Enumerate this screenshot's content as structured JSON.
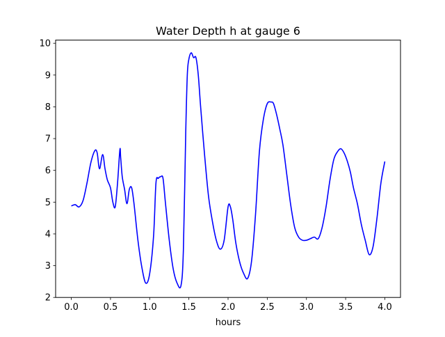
{
  "chart_data": {
    "type": "line",
    "title": "Water Depth h at gauge 6",
    "xlabel": "hours",
    "ylabel": "",
    "xlim": [
      -0.2,
      4.2
    ],
    "ylim": [
      2.0,
      10.1
    ],
    "xticks": [
      0.0,
      0.5,
      1.0,
      1.5,
      2.0,
      2.5,
      3.0,
      3.5,
      4.0
    ],
    "xtick_labels": [
      "0.0",
      "0.5",
      "1.0",
      "1.5",
      "2.0",
      "2.5",
      "3.0",
      "3.5",
      "4.0"
    ],
    "yticks": [
      2,
      3,
      4,
      5,
      6,
      7,
      8,
      9,
      10
    ],
    "ytick_labels": [
      "2",
      "3",
      "4",
      "5",
      "6",
      "7",
      "8",
      "9",
      "10"
    ],
    "grid": false,
    "legend": "none",
    "series": [
      {
        "color": "#0000ff",
        "x": [
          0.0,
          0.05,
          0.1,
          0.15,
          0.2,
          0.25,
          0.3,
          0.33,
          0.36,
          0.4,
          0.43,
          0.46,
          0.5,
          0.53,
          0.56,
          0.59,
          0.62,
          0.63,
          0.65,
          0.68,
          0.71,
          0.74,
          0.77,
          0.8,
          0.85,
          0.9,
          0.95,
          1.0,
          1.05,
          1.08,
          1.11,
          1.14,
          1.17,
          1.2,
          1.25,
          1.3,
          1.35,
          1.4,
          1.43,
          1.46,
          1.48,
          1.5,
          1.53,
          1.56,
          1.59,
          1.62,
          1.65,
          1.7,
          1.75,
          1.8,
          1.85,
          1.9,
          1.95,
          2.0,
          2.03,
          2.06,
          2.1,
          2.15,
          2.2,
          2.25,
          2.3,
          2.35,
          2.4,
          2.45,
          2.5,
          2.55,
          2.58,
          2.62,
          2.66,
          2.7,
          2.75,
          2.8,
          2.85,
          2.9,
          2.95,
          3.0,
          3.05,
          3.1,
          3.15,
          3.2,
          3.25,
          3.3,
          3.35,
          3.4,
          3.44,
          3.48,
          3.52,
          3.56,
          3.6,
          3.65,
          3.7,
          3.75,
          3.8,
          3.85,
          3.9,
          3.95,
          4.0
        ],
        "y": [
          4.88,
          4.92,
          4.85,
          5.05,
          5.6,
          6.25,
          6.62,
          6.55,
          6.05,
          6.5,
          6.05,
          5.7,
          5.45,
          5.0,
          4.85,
          5.6,
          6.65,
          6.4,
          5.8,
          5.4,
          4.95,
          5.4,
          5.45,
          4.95,
          3.8,
          2.95,
          2.45,
          2.75,
          3.95,
          5.6,
          5.75,
          5.8,
          5.75,
          5.0,
          3.8,
          2.9,
          2.45,
          2.38,
          3.5,
          7.2,
          9.0,
          9.5,
          9.7,
          9.55,
          9.55,
          9.0,
          8.0,
          6.5,
          5.2,
          4.4,
          3.8,
          3.52,
          3.8,
          4.85,
          4.85,
          4.45,
          3.7,
          3.1,
          2.75,
          2.6,
          3.15,
          4.6,
          6.6,
          7.6,
          8.1,
          8.15,
          8.1,
          7.75,
          7.3,
          6.8,
          5.85,
          4.9,
          4.2,
          3.9,
          3.8,
          3.8,
          3.85,
          3.9,
          3.85,
          4.2,
          4.85,
          5.7,
          6.35,
          6.6,
          6.68,
          6.55,
          6.3,
          5.95,
          5.45,
          4.95,
          4.3,
          3.8,
          3.35,
          3.6,
          4.5,
          5.6,
          6.28
        ]
      }
    ]
  }
}
